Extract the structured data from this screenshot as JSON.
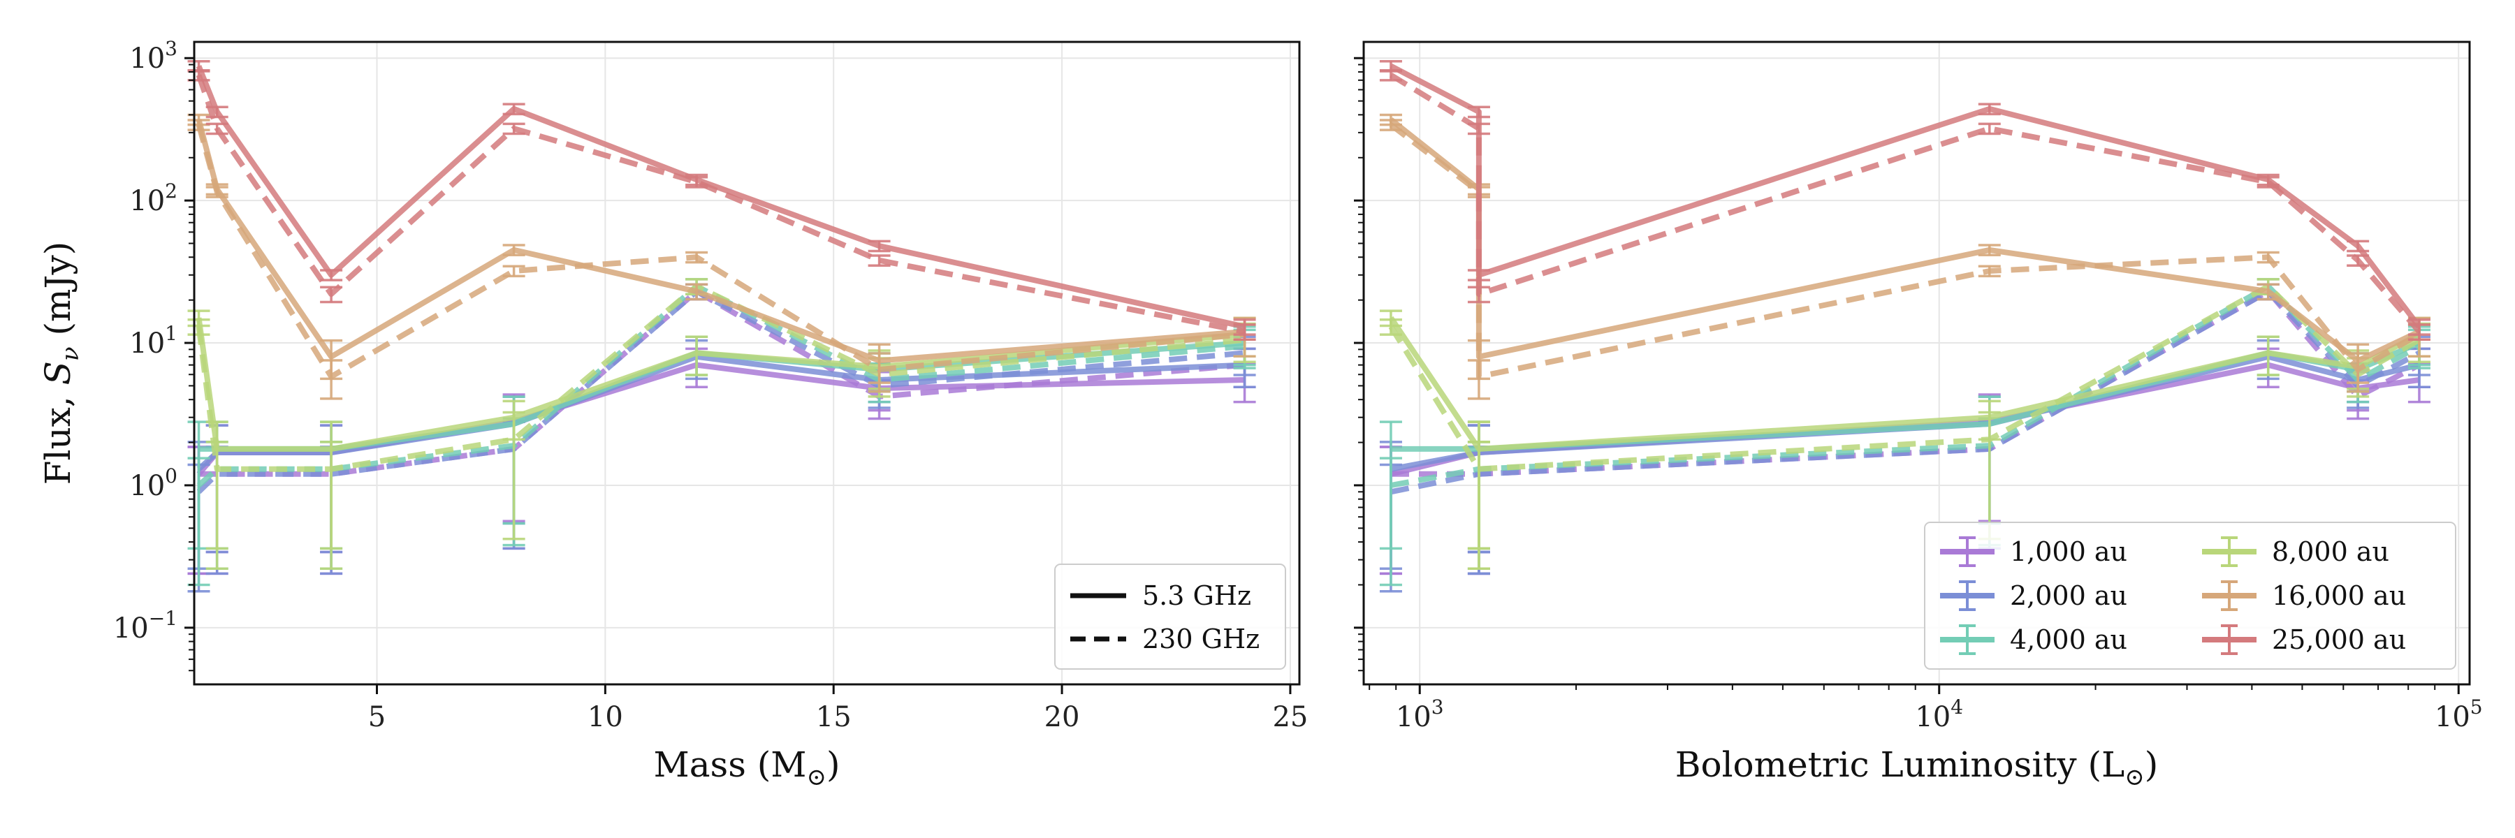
{
  "chart_data": [
    {
      "type": "line",
      "xlabel": "Mass (M",
      "xlabel_sub": "⊙",
      "ylabel": "Flux, ",
      "ylabel_sym": "S",
      "ylabel_sub": "ν",
      "ylabel_unit": " (mJy)",
      "xscale": "linear",
      "yscale": "log",
      "xlim": [
        1.0,
        25.2
      ],
      "ylim": [
        0.04,
        1300
      ],
      "x_ticks": [
        5,
        10,
        15,
        20,
        25
      ],
      "x_tick_labels": [
        "5",
        "10",
        "15",
        "20",
        "25"
      ],
      "y_ticks": [
        0.1,
        1,
        10,
        100,
        1000
      ],
      "y_tick_labels": [
        {
          "base": "10",
          "exp": "−1"
        },
        {
          "base": "10",
          "exp": "0"
        },
        {
          "base": "10",
          "exp": "1"
        },
        {
          "base": "10",
          "exp": "2"
        },
        {
          "base": "10",
          "exp": "3"
        }
      ],
      "grid": true,
      "x": [
        1.1,
        1.5,
        4.0,
        8.0,
        12.0,
        16.0,
        24.0
      ],
      "legend": {
        "placement": "lower-right",
        "entries": [
          {
            "label": "5.3 GHz",
            "style": "solid"
          },
          {
            "label": "230 GHz",
            "style": "dashed"
          }
        ]
      }
    },
    {
      "type": "line",
      "xlabel": "Bolometric Luminosity (L",
      "xlabel_sub": "⊙",
      "xscale": "log",
      "yscale": "log",
      "xlim": [
        780,
        105000
      ],
      "ylim": [
        0.04,
        1300
      ],
      "x_ticks": [
        1000,
        10000,
        100000
      ],
      "x_tick_labels": [
        {
          "base": "10",
          "exp": "3"
        },
        {
          "base": "10",
          "exp": "4"
        },
        {
          "base": "10",
          "exp": "5"
        }
      ],
      "grid": true,
      "x": [
        880,
        1300,
        1300,
        12500,
        43000,
        64000,
        84000
      ],
      "legend": {
        "placement": "lower-right",
        "entries": [
          "1,000 au",
          "2,000 au",
          "4,000 au",
          "8,000 au",
          "16,000 au",
          "25,000 au"
        ]
      }
    }
  ],
  "series": [
    {
      "name": "1,000 au",
      "color": "#a97ad6",
      "solid": [
        1.2,
        1.7,
        1.7,
        2.8,
        7.0,
        4.8,
        5.5
      ],
      "dashed": [
        1.2,
        1.2,
        1.2,
        1.8,
        23.0,
        4.2,
        7.0
      ]
    },
    {
      "name": "2,000 au",
      "color": "#7b8ed6",
      "solid": [
        1.3,
        1.7,
        1.7,
        2.7,
        8.0,
        5.5,
        7.0
      ],
      "dashed": [
        0.9,
        1.2,
        1.2,
        1.8,
        23.0,
        5.0,
        8.5
      ]
    },
    {
      "name": "4,000 au",
      "color": "#73cdb5",
      "solid": [
        1.8,
        1.8,
        1.8,
        2.7,
        8.5,
        6.5,
        10.0
      ],
      "dashed": [
        1.0,
        1.3,
        1.3,
        1.9,
        25.0,
        5.5,
        9.5
      ]
    },
    {
      "name": "8,000 au",
      "color": "#b9d67a",
      "solid": [
        15.0,
        1.8,
        1.8,
        3.0,
        8.5,
        6.8,
        11.5
      ],
      "dashed": [
        13.0,
        1.3,
        1.3,
        2.1,
        25.0,
        6.0,
        10.5
      ]
    },
    {
      "name": "16,000 au",
      "color": "#d6a77a",
      "solid": [
        370.0,
        120.0,
        8.0,
        45.0,
        23.0,
        7.5,
        12.0
      ],
      "dashed": [
        340.0,
        115.0,
        5.8,
        32.0,
        40.0,
        6.5,
        11.5
      ]
    },
    {
      "name": "25,000 au",
      "color": "#d47a7d",
      "solid": [
        880.0,
        420.0,
        30.0,
        440.0,
        140.0,
        48.0,
        13.0
      ],
      "dashed": [
        760.0,
        320.0,
        22.0,
        320.0,
        135.0,
        38.0,
        12.0
      ]
    }
  ]
}
